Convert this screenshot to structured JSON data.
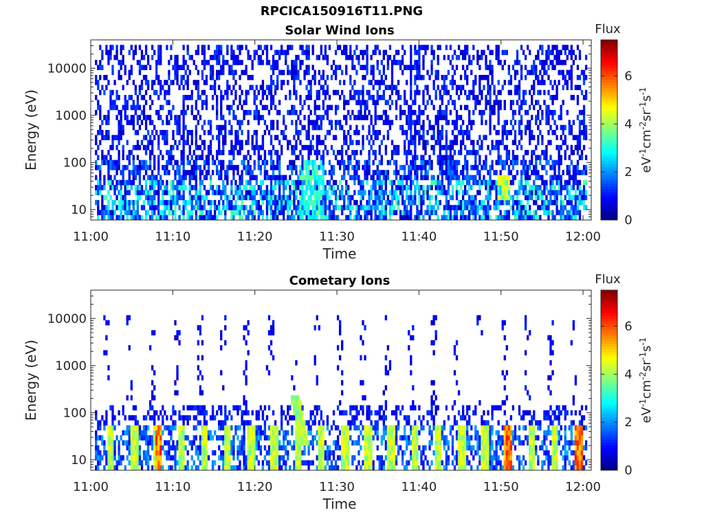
{
  "figure": {
    "title": "RPCICA150916T11.PNG"
  },
  "chart_data": [
    {
      "type": "heatmap",
      "title": "Solar Wind Ions",
      "xlabel": "Time",
      "ylabel": "Energy (eV)",
      "x_ticks": [
        "11:00",
        "11:10",
        "11:20",
        "11:30",
        "11:40",
        "11:50",
        "12:00"
      ],
      "x_range": [
        "11:00",
        "12:01"
      ],
      "y_scale": "log",
      "y_ticks": [
        10,
        100,
        1000,
        10000
      ],
      "y_tick_labels": [
        "10",
        "100",
        "1000",
        "10000"
      ],
      "y_range": [
        6,
        40000
      ],
      "colorbar": {
        "label": "Flux",
        "unit_label": "eV-1cm-2sr-1s-1",
        "range": [
          0,
          7.5
        ],
        "ticks": [
          0,
          2,
          4,
          6
        ],
        "colormap": "jet"
      },
      "features": [
        {
          "description": "sparse speckle across all energies",
          "energy_range": [
            6,
            40000
          ],
          "flux_range": [
            0.5,
            1.5
          ]
        },
        {
          "description": "low-energy structure near 11:27",
          "time": "11:27",
          "energy_range": [
            10,
            120
          ],
          "peak_flux": 3.5
        },
        {
          "description": "low-energy peak near 11:50",
          "time": "11:50",
          "energy": 30,
          "peak_flux": 4.5
        },
        {
          "description": "vertical lines",
          "times": [
            "11:11",
            "11:39"
          ]
        }
      ]
    },
    {
      "type": "heatmap",
      "title": "Cometary Ions",
      "xlabel": "Time",
      "ylabel": "Energy (eV)",
      "x_ticks": [
        "11:00",
        "11:10",
        "11:20",
        "11:30",
        "11:40",
        "11:50",
        "12:00"
      ],
      "x_range": [
        "11:00",
        "12:01"
      ],
      "y_scale": "log",
      "y_ticks": [
        10,
        100,
        1000,
        10000
      ],
      "y_tick_labels": [
        "10",
        "100",
        "1000",
        "10000"
      ],
      "y_range": [
        6,
        40000
      ],
      "colorbar": {
        "label": "Flux",
        "unit_label": "eV-1cm-2sr-1s-1",
        "range": [
          0,
          7.5
        ],
        "ticks": [
          0,
          2,
          4,
          6
        ],
        "colormap": "jet"
      },
      "features": [
        {
          "description": "periodic low-energy bursts (~2-3 min period)",
          "energy_range": [
            6,
            60
          ],
          "peak_flux": 6.5
        },
        {
          "description": "strongest bursts",
          "times": [
            "11:41",
            "11:50",
            "11:59"
          ],
          "peak_flux": 6.5
        },
        {
          "description": "rising feature near 11:27",
          "time": "11:27",
          "energy_range": [
            10,
            250
          ],
          "peak_flux": 4.5
        },
        {
          "description": "sparse high-energy dots",
          "energy_range": [
            200,
            12000
          ],
          "flux_range": [
            0.5,
            1.2
          ]
        }
      ]
    }
  ]
}
